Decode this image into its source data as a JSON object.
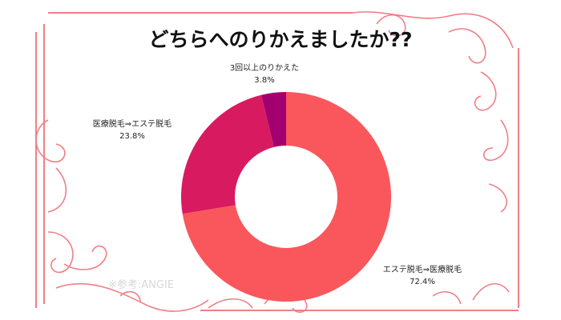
{
  "chart_data": {
    "type": "donut",
    "title": "どちらへのりかえましたか??",
    "categories": [
      "エステ脱毛⇒医療脱毛",
      "医療脱毛⇒エステ脱毛",
      "3回以上のりかえた"
    ],
    "values": [
      72.4,
      23.8,
      3.8
    ],
    "value_labels": [
      "72.4%",
      "23.8%",
      "3.8%"
    ],
    "colors": [
      "#f9575c",
      "#d81b60",
      "#a3006f"
    ],
    "source": "※参考:ANGIE"
  }
}
